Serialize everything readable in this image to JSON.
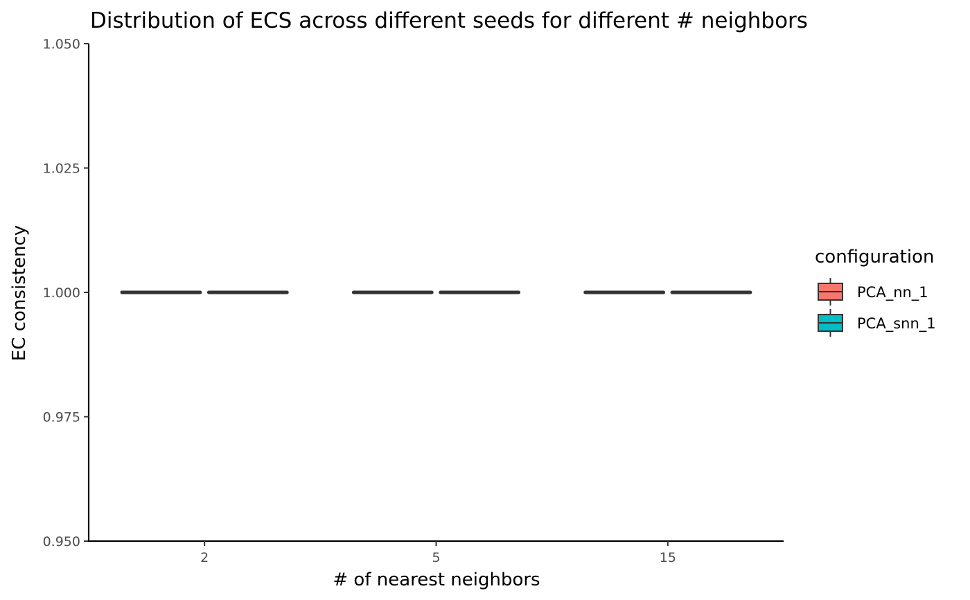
{
  "chart_data": {
    "type": "box",
    "title": "Distribution of ECS across different seeds for different # neighbors",
    "xlabel": "# of nearest neighbors",
    "ylabel": "EC consistency",
    "categories": [
      "2",
      "5",
      "15"
    ],
    "ylim": [
      0.95,
      1.05
    ],
    "yticks": [
      "0.950",
      "0.975",
      "1.000",
      "1.025",
      "1.050"
    ],
    "ytick_values": [
      0.95,
      0.975,
      1.0,
      1.025,
      1.05
    ],
    "legend": {
      "title": "configuration",
      "position": "right"
    },
    "series": [
      {
        "name": "PCA_nn_1",
        "color": "#F8766D",
        "boxes": [
          {
            "min": 1.0,
            "q1": 1.0,
            "median": 1.0,
            "q3": 1.0,
            "max": 1.0
          },
          {
            "min": 1.0,
            "q1": 1.0,
            "median": 1.0,
            "q3": 1.0,
            "max": 1.0
          },
          {
            "min": 1.0,
            "q1": 1.0,
            "median": 1.0,
            "q3": 1.0,
            "max": 1.0
          }
        ]
      },
      {
        "name": "PCA_snn_1",
        "color": "#00BFC4",
        "boxes": [
          {
            "min": 1.0,
            "q1": 1.0,
            "median": 1.0,
            "q3": 1.0,
            "max": 1.0
          },
          {
            "min": 1.0,
            "q1": 1.0,
            "median": 1.0,
            "q3": 1.0,
            "max": 1.0
          },
          {
            "min": 1.0,
            "q1": 1.0,
            "median": 1.0,
            "q3": 1.0,
            "max": 1.0
          }
        ]
      }
    ],
    "grid": false
  }
}
